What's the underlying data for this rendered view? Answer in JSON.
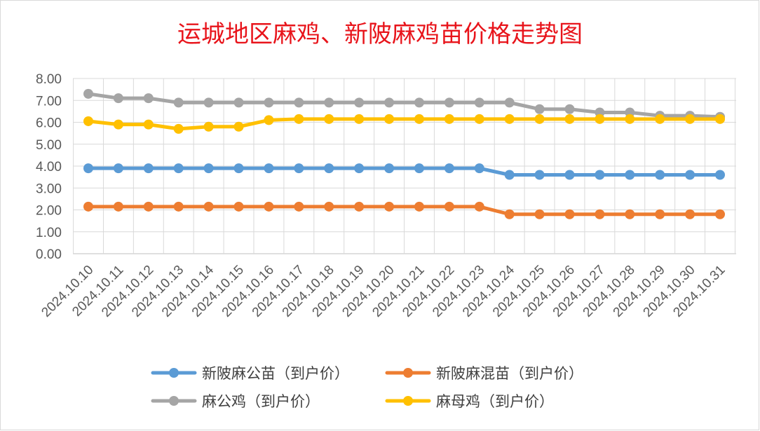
{
  "chart_data": {
    "type": "line",
    "title": "运城地区麻鸡、新陂麻鸡苗价格走势图",
    "xlabel": "",
    "ylabel": "",
    "ylim": [
      0,
      8
    ],
    "yticks": [
      "0.00",
      "1.00",
      "2.00",
      "3.00",
      "4.00",
      "5.00",
      "6.00",
      "7.00",
      "8.00"
    ],
    "grid": true,
    "legend_position": "bottom",
    "x": [
      "2024.10.10",
      "2024.10.11",
      "2024.10.12",
      "2024.10.13",
      "2024.10.14",
      "2024.10.15",
      "2024.10.16",
      "2024.10.17",
      "2024.10.18",
      "2024.10.19",
      "2024.10.20",
      "2024.10.21",
      "2024.10.22",
      "2024.10.23",
      "2024.10.24",
      "2024.10.25",
      "2024.10.26",
      "2024.10.27",
      "2024.10.28",
      "2024.10.29",
      "2024.10.30",
      "2024.10.31"
    ],
    "series": [
      {
        "name": "新陂麻公苗（到户价）",
        "color": "#5b9bd5",
        "values": [
          3.9,
          3.9,
          3.9,
          3.9,
          3.9,
          3.9,
          3.9,
          3.9,
          3.9,
          3.9,
          3.9,
          3.9,
          3.9,
          3.9,
          3.6,
          3.6,
          3.6,
          3.6,
          3.6,
          3.6,
          3.6,
          3.6
        ]
      },
      {
        "name": "新陂麻混苗（到户价）",
        "color": "#ed7d31",
        "values": [
          2.15,
          2.15,
          2.15,
          2.15,
          2.15,
          2.15,
          2.15,
          2.15,
          2.15,
          2.15,
          2.15,
          2.15,
          2.15,
          2.15,
          1.8,
          1.8,
          1.8,
          1.8,
          1.8,
          1.8,
          1.8,
          1.8
        ]
      },
      {
        "name": "麻公鸡（到户价）",
        "color": "#a5a5a5",
        "values": [
          7.3,
          7.1,
          7.1,
          6.9,
          6.9,
          6.9,
          6.9,
          6.9,
          6.9,
          6.9,
          6.9,
          6.9,
          6.9,
          6.9,
          6.9,
          6.6,
          6.6,
          6.45,
          6.45,
          6.3,
          6.3,
          6.25
        ]
      },
      {
        "name": "麻母鸡（到户价）",
        "color": "#ffc000",
        "values": [
          6.05,
          5.9,
          5.9,
          5.7,
          5.8,
          5.8,
          6.1,
          6.15,
          6.15,
          6.15,
          6.15,
          6.15,
          6.15,
          6.15,
          6.15,
          6.15,
          6.15,
          6.15,
          6.15,
          6.15,
          6.15,
          6.15
        ]
      }
    ]
  }
}
